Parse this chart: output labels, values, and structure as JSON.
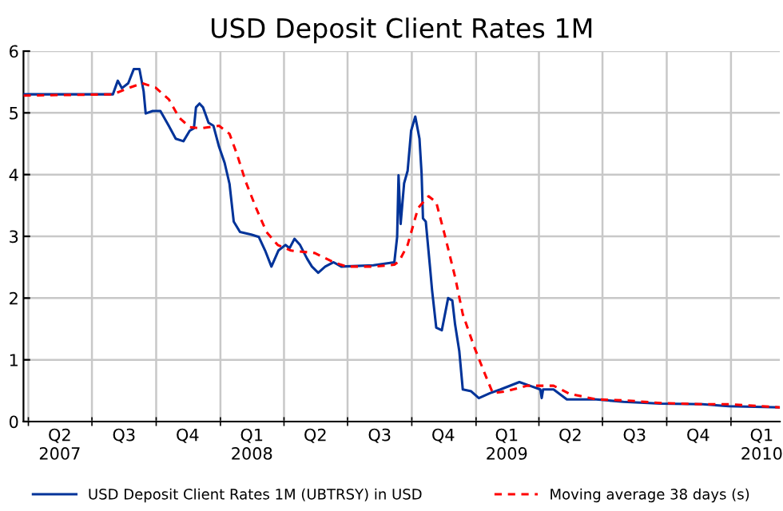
{
  "chart_data": {
    "type": "line",
    "title": "USD Deposit Client Rates 1M",
    "xlim": [
      "2007-03-25",
      "2010-03-12"
    ],
    "ylim": [
      0,
      6
    ],
    "yticks": [
      0,
      1,
      2,
      3,
      4,
      5,
      6
    ],
    "xticks": [
      {
        "value": "2007-04-01",
        "label": null
      },
      {
        "value": "2007-05-16",
        "label": "Q2\n2007"
      },
      {
        "value": "2007-07-01",
        "label": null
      },
      {
        "value": "2007-08-16",
        "label": "Q3"
      },
      {
        "value": "2007-10-01",
        "label": null
      },
      {
        "value": "2007-11-15",
        "label": "Q4"
      },
      {
        "value": "2008-01-01",
        "label": null
      },
      {
        "value": "2008-02-15",
        "label": "Q1\n2008"
      },
      {
        "value": "2008-04-01",
        "label": null
      },
      {
        "value": "2008-05-16",
        "label": "Q2"
      },
      {
        "value": "2008-07-01",
        "label": null
      },
      {
        "value": "2008-08-16",
        "label": "Q3"
      },
      {
        "value": "2008-10-01",
        "label": null
      },
      {
        "value": "2008-11-15",
        "label": "Q4"
      },
      {
        "value": "2009-01-01",
        "label": null
      },
      {
        "value": "2009-02-14",
        "label": "Q1\n2009"
      },
      {
        "value": "2009-04-01",
        "label": null
      },
      {
        "value": "2009-05-16",
        "label": "Q2"
      },
      {
        "value": "2009-07-01",
        "label": null
      },
      {
        "value": "2009-08-16",
        "label": "Q3"
      },
      {
        "value": "2009-10-01",
        "label": null
      },
      {
        "value": "2009-11-15",
        "label": "Q4"
      },
      {
        "value": "2010-01-01",
        "label": null
      },
      {
        "value": "2010-02-14",
        "label": "Q1\n2010"
      }
    ],
    "grid": true,
    "legend": "bottom",
    "marker": "none",
    "series": [
      {
        "name": "USD Deposit Client Rates 1M (UBTRSY) in USD",
        "color": "#003399",
        "line_style": "solid",
        "x": [
          "2007-03-25",
          "2007-07-31",
          "2007-08-07",
          "2007-08-13",
          "2007-08-22",
          "2007-08-30",
          "2007-09-07",
          "2007-09-13",
          "2007-09-16",
          "2007-09-26",
          "2007-10-07",
          "2007-10-19",
          "2007-10-29",
          "2007-11-09",
          "2007-11-18",
          "2007-11-24",
          "2007-11-27",
          "2007-12-02",
          "2007-12-07",
          "2007-12-15",
          "2007-12-22",
          "2007-12-30",
          "2008-01-07",
          "2008-01-14",
          "2008-01-20",
          "2008-01-29",
          "2008-02-14",
          "2008-02-25",
          "2008-03-05",
          "2008-03-14",
          "2008-03-24",
          "2008-04-03",
          "2008-04-09",
          "2008-04-16",
          "2008-04-24",
          "2008-05-04",
          "2008-05-11",
          "2008-05-20",
          "2008-05-30",
          "2008-06-11",
          "2008-06-22",
          "2008-08-07",
          "2008-09-06",
          "2008-09-10",
          "2008-09-12",
          "2008-09-15",
          "2008-09-20",
          "2008-09-25",
          "2008-09-30",
          "2008-10-06",
          "2008-10-12",
          "2008-10-15",
          "2008-10-17",
          "2008-10-21",
          "2008-10-27",
          "2008-10-30",
          "2008-11-05",
          "2008-11-13",
          "2008-11-22",
          "2008-11-28",
          "2008-12-02",
          "2008-12-08",
          "2008-12-13",
          "2008-12-25",
          "2009-01-05",
          "2009-01-21",
          "2009-02-05",
          "2009-03-04",
          "2009-03-19",
          "2009-04-03",
          "2009-04-05",
          "2009-04-07",
          "2009-04-22",
          "2009-05-11",
          "2009-06-22",
          "2009-07-31",
          "2009-09-22",
          "2009-11-21",
          "2009-12-29",
          "2010-03-12"
        ],
        "values": [
          5.3,
          5.3,
          5.52,
          5.4,
          5.48,
          5.71,
          5.71,
          5.35,
          4.99,
          5.03,
          5.03,
          4.79,
          4.58,
          4.54,
          4.71,
          4.75,
          5.09,
          5.15,
          5.09,
          4.84,
          4.79,
          4.45,
          4.19,
          3.85,
          3.24,
          3.07,
          3.03,
          2.99,
          2.77,
          2.51,
          2.77,
          2.86,
          2.81,
          2.96,
          2.86,
          2.64,
          2.51,
          2.41,
          2.51,
          2.58,
          2.51,
          2.53,
          2.58,
          2.99,
          3.99,
          3.2,
          3.86,
          4.06,
          4.71,
          4.94,
          4.58,
          4.02,
          3.29,
          3.24,
          2.51,
          2.13,
          1.52,
          1.48,
          2.0,
          1.96,
          1.57,
          1.14,
          0.52,
          0.49,
          0.38,
          0.46,
          0.52,
          0.64,
          0.58,
          0.52,
          0.38,
          0.52,
          0.52,
          0.36,
          0.36,
          0.32,
          0.29,
          0.28,
          0.25,
          0.23
        ]
      },
      {
        "name": "Moving average 38 days (s)",
        "color": "#ff0000",
        "line_style": "dashed",
        "x": [
          "2007-03-25",
          "2007-07-31",
          "2007-08-22",
          "2007-09-11",
          "2007-09-30",
          "2007-10-19",
          "2007-11-03",
          "2007-11-18",
          "2007-12-03",
          "2007-12-30",
          "2008-01-14",
          "2008-01-25",
          "2008-02-06",
          "2008-02-21",
          "2008-03-07",
          "2008-03-23",
          "2008-04-11",
          "2008-05-15",
          "2008-06-11",
          "2008-06-30",
          "2008-08-07",
          "2008-09-06",
          "2008-09-13",
          "2008-09-25",
          "2008-10-10",
          "2008-10-25",
          "2008-11-05",
          "2008-11-17",
          "2008-12-02",
          "2008-12-13",
          "2008-12-29",
          "2009-01-13",
          "2009-01-25",
          "2009-02-13",
          "2009-03-15",
          "2009-04-22",
          "2009-05-15",
          "2009-06-22",
          "2009-08-07",
          "2009-09-22",
          "2009-11-21",
          "2009-12-29",
          "2010-03-12"
        ],
        "values": [
          5.28,
          5.3,
          5.4,
          5.48,
          5.41,
          5.22,
          4.92,
          4.77,
          4.75,
          4.79,
          4.66,
          4.32,
          3.89,
          3.46,
          3.07,
          2.86,
          2.77,
          2.73,
          2.58,
          2.51,
          2.51,
          2.54,
          2.6,
          2.86,
          3.46,
          3.65,
          3.55,
          3.03,
          2.34,
          1.74,
          1.22,
          0.79,
          0.46,
          0.49,
          0.58,
          0.58,
          0.45,
          0.36,
          0.34,
          0.3,
          0.28,
          0.28,
          0.23
        ]
      }
    ]
  }
}
